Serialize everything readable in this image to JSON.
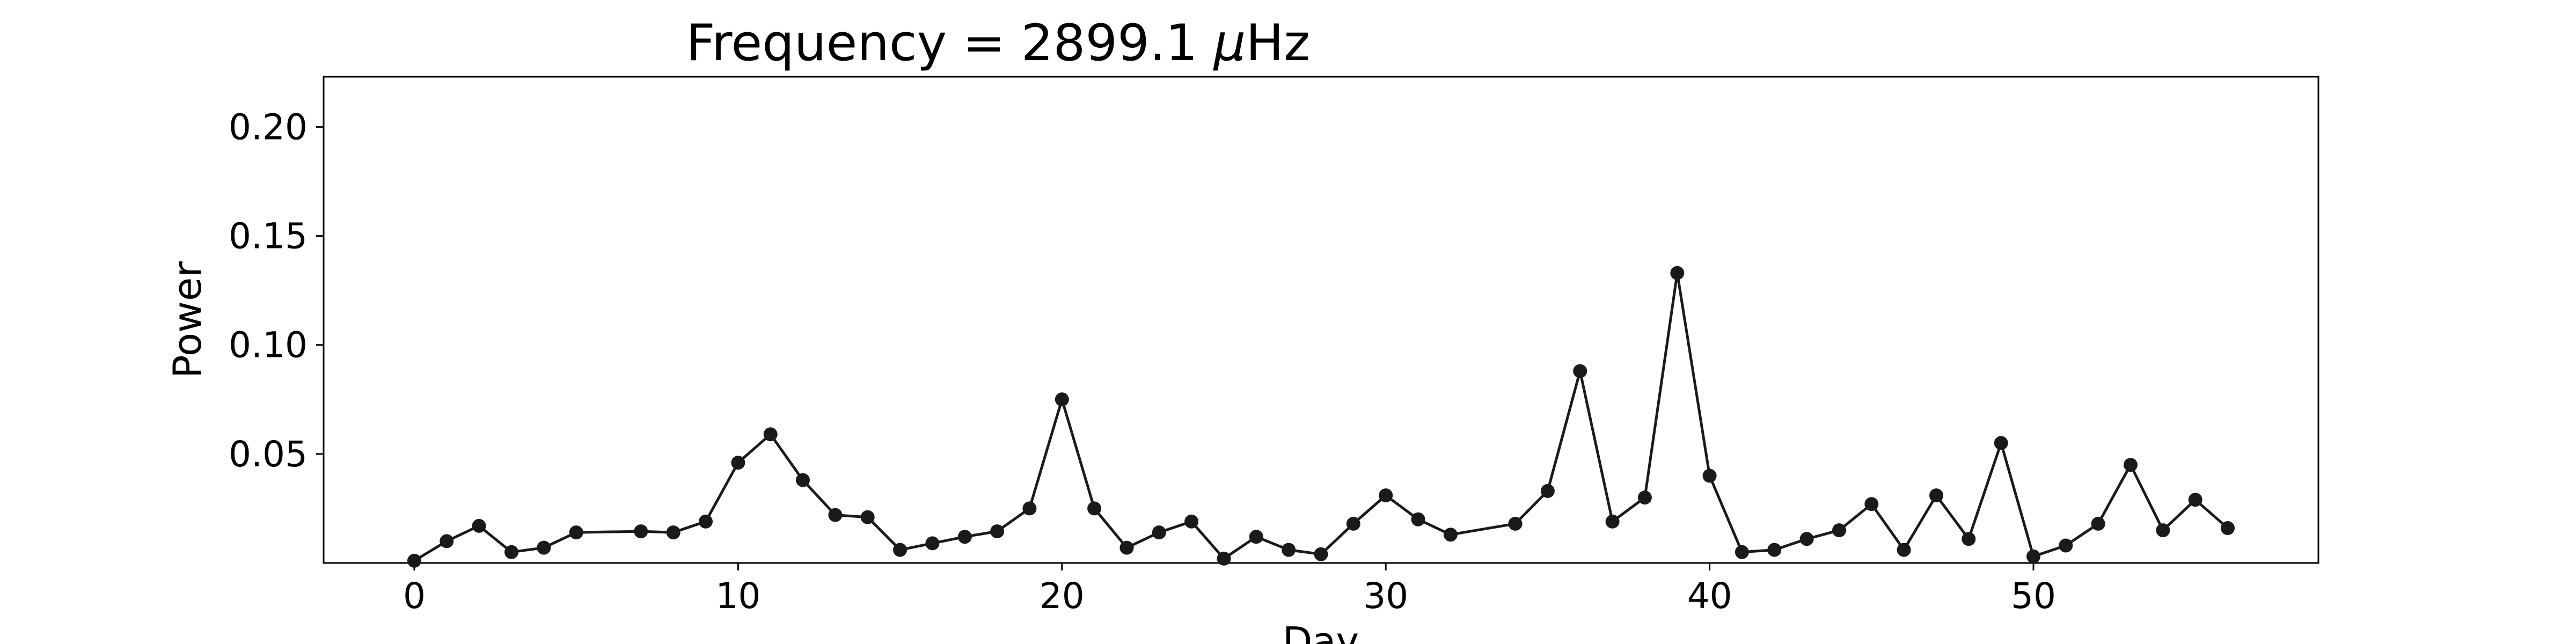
{
  "chart_data": {
    "type": "line",
    "title_prefix": "Frequency = 2899.1 ",
    "title_symbol": "μ",
    "title_suffix": "Hz",
    "xlabel": "Day",
    "ylabel": "Power",
    "xlim": [
      -2.8,
      58.8
    ],
    "ylim": [
      0.0,
      0.223
    ],
    "xticks": [
      0,
      10,
      20,
      30,
      40,
      50
    ],
    "yticks": [
      0.05,
      0.1,
      0.15,
      0.2
    ],
    "xtick_labels": [
      "0",
      "10",
      "20",
      "30",
      "40",
      "50"
    ],
    "ytick_labels": [
      "0.05",
      "0.10",
      "0.15",
      "0.20"
    ],
    "grid": false,
    "legend": "none",
    "line_color": "#1a1a1a",
    "marker_color": "#1a1a1a",
    "series": [
      {
        "x": [
          0,
          1,
          2,
          3,
          4,
          5,
          7,
          8,
          9,
          10,
          11,
          12,
          13,
          14,
          15,
          16,
          17,
          18,
          19,
          20,
          21,
          22,
          23,
          24,
          25,
          26,
          27,
          28,
          29,
          30,
          31,
          32,
          34,
          35,
          36,
          37,
          38,
          39,
          40,
          41,
          42,
          43,
          44,
          45,
          46,
          47,
          48,
          49,
          50,
          51,
          52,
          53,
          54,
          55,
          56
        ],
        "y": [
          0.001,
          0.01,
          0.017,
          0.005,
          0.007,
          0.014,
          0.0145,
          0.014,
          0.019,
          0.046,
          0.059,
          0.038,
          0.022,
          0.021,
          0.006,
          0.009,
          0.012,
          0.0145,
          0.025,
          0.075,
          0.025,
          0.007,
          0.014,
          0.019,
          0.002,
          0.012,
          0.006,
          0.004,
          0.018,
          0.031,
          0.02,
          0.013,
          0.018,
          0.033,
          0.088,
          0.019,
          0.03,
          0.133,
          0.04,
          0.005,
          0.006,
          0.011,
          0.015,
          0.027,
          0.006,
          0.031,
          0.011,
          0.055,
          0.003,
          0.008,
          0.018,
          0.045,
          0.015,
          0.029,
          0.016
        ]
      }
    ]
  }
}
